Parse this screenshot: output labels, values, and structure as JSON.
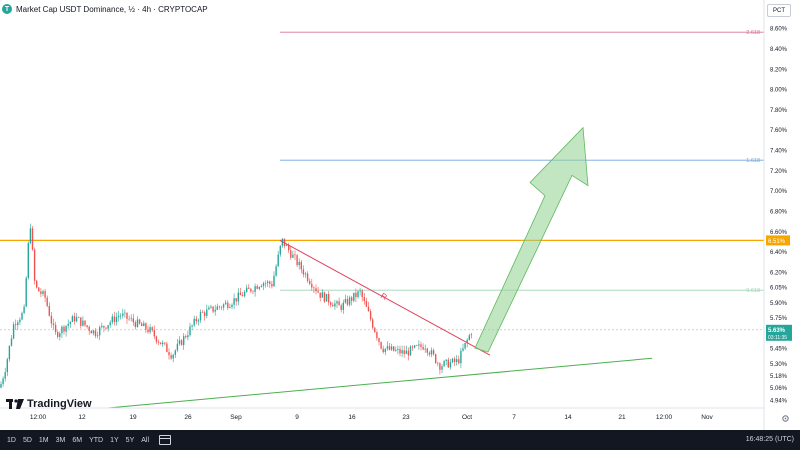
{
  "header": {
    "title": "Market Cap USDT Dominance, ½ · 4h · CRYPTOCAP",
    "scale_button": "PCT"
  },
  "brand": {
    "name": "TradingView",
    "icon": "tradingview-logo-icon"
  },
  "toolbar": {
    "timeframes": [
      "1D",
      "5D",
      "1M",
      "3M",
      "6M",
      "YTD",
      "1Y",
      "5Y",
      "All"
    ],
    "clock": "16:48:25 (UTC)",
    "calendar_icon": "calendar-range-icon"
  },
  "chart_data": {
    "type": "candlestick",
    "symbol": "USDT Dominance",
    "y_unit": "%",
    "ylim": [
      4.86,
      8.68
    ],
    "y_ticks": [
      "8.60%",
      "8.40%",
      "8.20%",
      "8.00%",
      "7.80%",
      "7.60%",
      "7.40%",
      "7.20%",
      "7.00%",
      "6.80%",
      "6.60%",
      "6.40%",
      "6.20%",
      "6.05%",
      "5.90%",
      "5.75%",
      "5.60%",
      "5.45%",
      "5.30%",
      "5.18%",
      "5.06%",
      "4.94%"
    ],
    "x_ticks": [
      "12:00",
      "12",
      "19",
      "26",
      "Sep",
      "9",
      "16",
      "23",
      "Oct",
      "7",
      "14",
      "21",
      "12:00",
      "Nov"
    ],
    "current_price": {
      "label": "5.63%",
      "countdown": "03:11:35",
      "value": 5.63,
      "color": "#26a69a"
    },
    "horizontal_lines": [
      {
        "value": 8.56,
        "color": "#d9738f",
        "label": "2.618"
      },
      {
        "value": 7.3,
        "color": "#6fa8dc",
        "label": "1.618"
      },
      {
        "value": 6.51,
        "color": "#f7a600",
        "label": "6.51%"
      },
      {
        "value": 6.02,
        "color": "#9fd4b8",
        "label": "0.618"
      }
    ],
    "trendlines": [
      {
        "name": "resistance",
        "color": "#e0415c",
        "label": "R",
        "from": {
          "x": "Sep 5",
          "y": 6.51
        },
        "to": {
          "x": "Oct 3",
          "y": 5.38
        }
      },
      {
        "name": "support",
        "color": "#4caf50",
        "from": {
          "x": "Aug 21",
          "y": 4.86
        },
        "to": {
          "x": "Oct 17",
          "y": 5.35
        }
      }
    ],
    "projection_arrow": {
      "color": "#8fd18f",
      "direction": "up",
      "from_value": 5.45,
      "to_value": 7.62
    },
    "candles_summary": {
      "start": 5.06,
      "peak_early": 6.72,
      "high_sep": 6.51,
      "low_late_sep": 5.28,
      "last": 5.63
    }
  }
}
